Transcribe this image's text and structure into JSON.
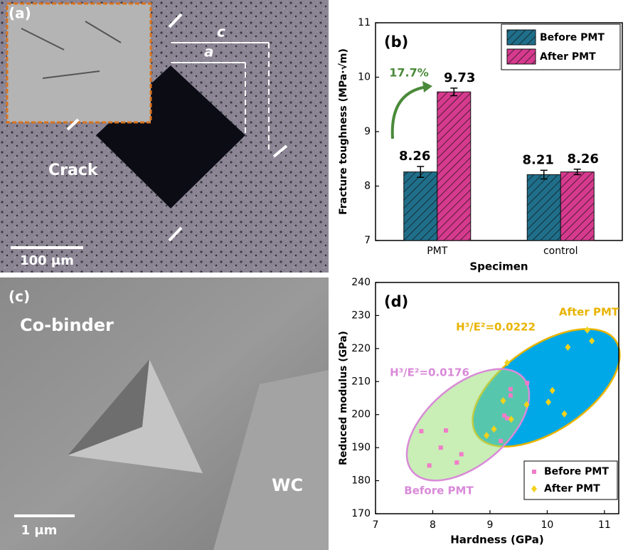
{
  "chart_data": [
    {
      "type": "bar",
      "panel_label": "(b)",
      "xlabel": "Specimen",
      "ylabel": "Fracture toughness (MPa·√m)",
      "categories": [
        "PMT",
        "control"
      ],
      "series": [
        {
          "name": "Before PMT",
          "color": "#1f6f8b",
          "values": [
            8.26,
            8.21
          ],
          "errors": [
            0.1,
            0.08
          ]
        },
        {
          "name": "After PMT",
          "color": "#d63a8e",
          "values": [
            9.73,
            8.26
          ],
          "errors": [
            0.07,
            0.05
          ]
        }
      ],
      "ylim": [
        7,
        11
      ],
      "yticks": [
        7,
        8,
        9,
        10,
        11
      ],
      "legend": "top-right",
      "annotations": [
        {
          "text": "17.7%",
          "color": "#4a8a3a"
        }
      ]
    },
    {
      "type": "scatter",
      "panel_label": "(d)",
      "xlabel": "Hardness (GPa)",
      "ylabel": "Reduced modulus (GPa)",
      "series": [
        {
          "name": "Before PMT",
          "color": "#f07cc8",
          "marker": "square",
          "x": [
            7.8,
            8.23,
            8.14,
            7.94,
            8.42,
            8.5,
            9.19,
            9.25,
            9.3,
            9.36,
            9.36,
            9.65
          ],
          "values": [
            195,
            195.2,
            190,
            184.6,
            185.5,
            188,
            192,
            199.7,
            198.9,
            207.7,
            205.8,
            209.6
          ]
        },
        {
          "name": "After PMT",
          "color": "#f2d21b",
          "marker": "diamond",
          "x": [
            8.94,
            9.07,
            9.3,
            9.23,
            9.37,
            9.64,
            10.09,
            10.02,
            10.3,
            10.36,
            10.7,
            10.78
          ],
          "values": [
            193.7,
            195.6,
            215.7,
            204.2,
            198.6,
            203,
            207.3,
            203.8,
            200.2,
            220.4,
            225.6,
            222.3
          ]
        }
      ],
      "xlim": [
        7,
        11.25
      ],
      "xticks": [
        7,
        8,
        9,
        10,
        11
      ],
      "ylim": [
        170,
        240
      ],
      "yticks": [
        170,
        180,
        190,
        200,
        210,
        220,
        230,
        240
      ],
      "legend": "bottom-right",
      "annotations": [
        {
          "text": "H³/E²=0.0222",
          "color": "#e8b400"
        },
        {
          "text": "After PMT",
          "color": "#e8b400"
        },
        {
          "text": "H³/E²=0.0176",
          "color": "#d98ad8"
        },
        {
          "text": "Before PMT",
          "color": "#d98ad8"
        }
      ]
    }
  ],
  "micrographs": [
    {
      "label": "(a)",
      "texts": [
        "Crack",
        "a",
        "c"
      ],
      "scale_bar": "100 μm"
    },
    {
      "label": "(c)",
      "texts": [
        "Co-binder",
        "WC"
      ],
      "scale_bar": "1 μm"
    }
  ]
}
